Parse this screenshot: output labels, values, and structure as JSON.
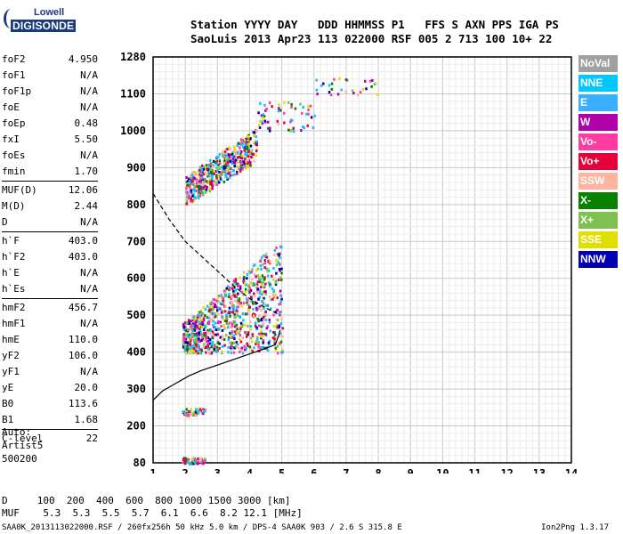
{
  "logo": {
    "line1": "Lowell",
    "line2": "DIGISONDE"
  },
  "header": {
    "labels": "Station YYYY DAY   DDD HHMMSS P1   FFS S AXN PPS IGA PS",
    "values": "SaoLuis 2013 Apr23 113 022000 RSF 005 2 713 100 10+ 22"
  },
  "params_group1": [
    {
      "k": "foF2",
      "v": "4.950"
    },
    {
      "k": "foF1",
      "v": "N/A"
    },
    {
      "k": "foF1p",
      "v": "N/A"
    },
    {
      "k": "foE",
      "v": "N/A"
    },
    {
      "k": "foEp",
      "v": "0.48"
    },
    {
      "k": "fxI",
      "v": "5.50"
    },
    {
      "k": "foEs",
      "v": "N/A"
    },
    {
      "k": "fmin",
      "v": "1.70"
    }
  ],
  "params_group2": [
    {
      "k": "MUF(D)",
      "v": "12.06"
    },
    {
      "k": "M(D)",
      "v": "2.44"
    },
    {
      "k": "D",
      "v": "N/A"
    }
  ],
  "params_group3": [
    {
      "k": "h`F",
      "v": "403.0"
    },
    {
      "k": "h`F2",
      "v": "403.0"
    },
    {
      "k": "h`E",
      "v": "N/A"
    },
    {
      "k": "h`Es",
      "v": "N/A"
    }
  ],
  "params_group4": [
    {
      "k": "hmF2",
      "v": "456.7"
    },
    {
      "k": "hmF1",
      "v": "N/A"
    },
    {
      "k": "hmE",
      "v": "110.0"
    },
    {
      "k": "yF2",
      "v": "106.0"
    },
    {
      "k": "yF1",
      "v": "N/A"
    },
    {
      "k": "yE",
      "v": "20.0"
    },
    {
      "k": "B0",
      "v": "113.6"
    },
    {
      "k": "B1",
      "v": "1.68"
    }
  ],
  "params_group5": [
    {
      "k": "C-level",
      "v": "22"
    }
  ],
  "auto": {
    "l1": "Auto:",
    "l2": "Artist5",
    "l3": "500200"
  },
  "legend": [
    {
      "label": "NoVal",
      "color": "#a0a0a0"
    },
    {
      "label": "NNE",
      "color": "#00c8ff"
    },
    {
      "label": "E",
      "color": "#3aaeff"
    },
    {
      "label": "W",
      "color": "#b000a8"
    },
    {
      "label": "Vo-",
      "color": "#ff3ca0"
    },
    {
      "label": "Vo+",
      "color": "#e8003c"
    },
    {
      "label": "SSW",
      "color": "#ffb4a0"
    },
    {
      "label": "X-",
      "color": "#0a8000"
    },
    {
      "label": "X+",
      "color": "#80c050"
    },
    {
      "label": "SSE",
      "color": "#e0e000"
    },
    {
      "label": "NNW",
      "color": "#0000b0"
    }
  ],
  "chart_data": {
    "type": "scatter",
    "x_ticks": [
      "1",
      "2",
      "3",
      "4",
      "5",
      "6",
      "7",
      "8",
      "9",
      "10",
      "11",
      "12",
      "13",
      "14"
    ],
    "y_ticks": [
      "80",
      "200",
      "300",
      "400",
      "500",
      "600",
      "700",
      "800",
      "900",
      "1000",
      "1100",
      "1280"
    ],
    "xlim": [
      1,
      14
    ],
    "y_tick_values": [
      80,
      200,
      300,
      400,
      500,
      600,
      700,
      800,
      900,
      1000,
      1100,
      1280
    ],
    "profile": [
      [
        1.0,
        270
      ],
      [
        1.3,
        295
      ],
      [
        1.7,
        315
      ],
      [
        2.1,
        335
      ],
      [
        2.5,
        350
      ],
      [
        3.0,
        365
      ],
      [
        3.5,
        380
      ],
      [
        4.0,
        395
      ],
      [
        4.5,
        410
      ],
      [
        4.8,
        420
      ],
      [
        4.9,
        445
      ],
      [
        4.95,
        460
      ]
    ],
    "dashed": [
      [
        1.0,
        830
      ],
      [
        1.5,
        760
      ],
      [
        2.0,
        700
      ],
      [
        2.5,
        660
      ],
      [
        3.0,
        620
      ],
      [
        3.5,
        580
      ],
      [
        4.0,
        545
      ],
      [
        4.5,
        520
      ],
      [
        4.95,
        500
      ]
    ],
    "clusters": [
      {
        "x": [
          1.9,
          2.6
        ],
        "y": [
          80,
          100
        ],
        "n": 80
      },
      {
        "x": [
          1.9,
          2.6
        ],
        "y": [
          230,
          250
        ],
        "n": 50
      },
      {
        "x": [
          1.9,
          5.0
        ],
        "y": [
          400,
          700
        ],
        "n": 900
      },
      {
        "x": [
          2.0,
          4.2
        ],
        "y": [
          800,
          1000
        ],
        "n": 500
      },
      {
        "x": [
          4.2,
          6.0
        ],
        "y": [
          1000,
          1080
        ],
        "n": 60
      },
      {
        "x": [
          6.0,
          8.0
        ],
        "y": [
          1100,
          1180
        ],
        "n": 30
      }
    ]
  },
  "footer": {
    "row1": "D     100  200  400  600  800 1000 1500 3000 [km]",
    "row2": "MUF    5.3  5.3  5.5  5.7  6.1  6.6  8.2 12.1 [MHz]",
    "line": "SAA0K_2013113022000.RSF / 260fx256h 50 kHz 5.0 km / DPS-4 SAA0K 903 / 2.6 S 315.8 E",
    "version": "Ion2Png 1.3.17"
  }
}
